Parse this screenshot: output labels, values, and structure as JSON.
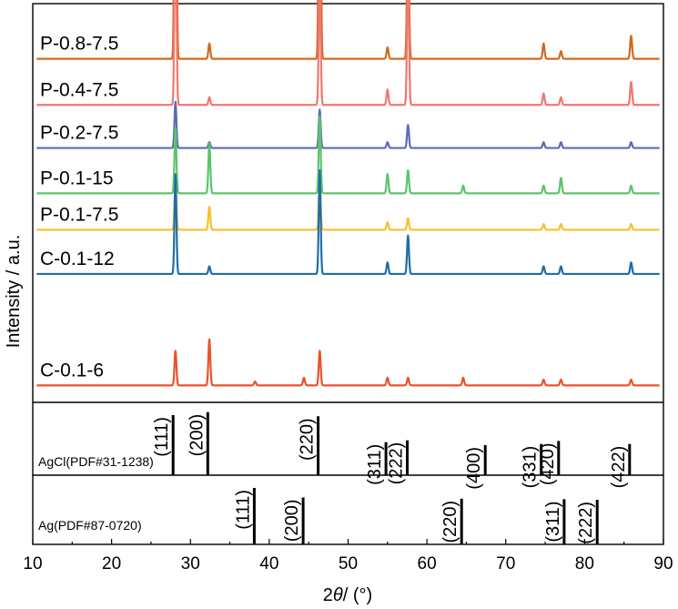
{
  "chart_data": {
    "type": "line",
    "xlabel_num": "2",
    "xlabel_var": "θ",
    "xlabel_unit": "/ (°)",
    "ylabel": "Intensity / a.u.",
    "xlim": [
      10,
      90
    ],
    "xticks": [
      "10",
      "20",
      "30",
      "40",
      "50",
      "60",
      "70",
      "80",
      "90"
    ],
    "series": [
      {
        "name": "P-0.8-7.5",
        "color": "#D2691E",
        "baseline": 0.88,
        "peaks": [
          [
            28.1,
            1.0
          ],
          [
            32.4,
            0.04
          ],
          [
            46.4,
            0.81
          ],
          [
            55.0,
            0.03
          ],
          [
            57.6,
            0.38
          ],
          [
            74.8,
            0.04
          ],
          [
            77.0,
            0.02
          ],
          [
            85.9,
            0.06
          ]
        ]
      },
      {
        "name": "P-0.4-7.5",
        "color": "#F07870",
        "baseline": 0.76,
        "peaks": [
          [
            28.1,
            0.56
          ],
          [
            32.4,
            0.02
          ],
          [
            46.4,
            0.33
          ],
          [
            55.0,
            0.04
          ],
          [
            57.6,
            0.36
          ],
          [
            74.8,
            0.03
          ],
          [
            77.0,
            0.02
          ],
          [
            85.9,
            0.06
          ]
        ]
      },
      {
        "name": "P-0.2-7.5",
        "color": "#5B6BB5",
        "baseline": 0.648,
        "peaks": [
          [
            28.1,
            0.12
          ],
          [
            32.4,
            0.015
          ],
          [
            46.4,
            0.1
          ],
          [
            55.0,
            0.015
          ],
          [
            57.6,
            0.06
          ],
          [
            74.8,
            0.015
          ],
          [
            77.0,
            0.015
          ],
          [
            85.9,
            0.015
          ]
        ]
      },
      {
        "name": "P-0.1-15",
        "color": "#5CC46A",
        "baseline": 0.53,
        "peaks": [
          [
            28.1,
            0.17
          ],
          [
            32.4,
            0.13
          ],
          [
            46.4,
            0.2
          ],
          [
            55.0,
            0.05
          ],
          [
            57.6,
            0.06
          ],
          [
            64.6,
            0.02
          ],
          [
            74.8,
            0.02
          ],
          [
            77.0,
            0.04
          ],
          [
            85.9,
            0.02
          ]
        ]
      },
      {
        "name": "P-0.1-7.5",
        "color": "#F5C130",
        "baseline": 0.435,
        "peaks": [
          [
            28.1,
            0.12
          ],
          [
            32.4,
            0.06
          ],
          [
            46.4,
            0.12
          ],
          [
            55.0,
            0.02
          ],
          [
            57.6,
            0.03
          ],
          [
            74.8,
            0.015
          ],
          [
            77.0,
            0.015
          ],
          [
            85.9,
            0.015
          ]
        ]
      },
      {
        "name": "C-0.1-12",
        "color": "#1F6EA8",
        "baseline": 0.32,
        "peaks": [
          [
            28.1,
            0.26
          ],
          [
            32.4,
            0.02
          ],
          [
            46.4,
            0.27
          ],
          [
            55.0,
            0.03
          ],
          [
            57.6,
            0.1
          ],
          [
            74.8,
            0.02
          ],
          [
            77.0,
            0.02
          ],
          [
            85.9,
            0.03
          ]
        ]
      },
      {
        "name": "C-0.1-6",
        "color": "#E8532A",
        "baseline": 0.03,
        "peaks": [
          [
            28.1,
            0.09
          ],
          [
            32.4,
            0.12
          ],
          [
            38.2,
            0.01
          ],
          [
            44.4,
            0.02
          ],
          [
            46.4,
            0.09
          ],
          [
            55.0,
            0.02
          ],
          [
            57.6,
            0.02
          ],
          [
            64.6,
            0.02
          ],
          [
            74.8,
            0.015
          ],
          [
            77.0,
            0.015
          ],
          [
            85.9,
            0.015
          ]
        ]
      }
    ],
    "references": [
      {
        "name": "AgCl(PDF#31-1238)",
        "lines": [
          {
            "x": 27.8,
            "rel": 1.0,
            "hkl": "(111)"
          },
          {
            "x": 32.2,
            "rel": 1.05,
            "hkl": "(200)"
          },
          {
            "x": 46.2,
            "rel": 0.98,
            "hkl": "(220)"
          },
          {
            "x": 54.8,
            "rel": 0.55,
            "hkl": "(311)"
          },
          {
            "x": 57.5,
            "rel": 0.58,
            "hkl": "(222)"
          },
          {
            "x": 67.4,
            "rel": 0.5,
            "hkl": "(400)"
          },
          {
            "x": 74.5,
            "rel": 0.52,
            "hkl": "(331)"
          },
          {
            "x": 76.7,
            "rel": 0.57,
            "hkl": "(420)"
          },
          {
            "x": 85.7,
            "rel": 0.52,
            "hkl": "(422)"
          }
        ]
      },
      {
        "name": "Ag(PDF#87-0720)",
        "lines": [
          {
            "x": 38.1,
            "rel": 1.0,
            "hkl": "(111)"
          },
          {
            "x": 44.3,
            "rel": 0.83,
            "hkl": "(200)"
          },
          {
            "x": 64.4,
            "rel": 0.81,
            "hkl": "(220)"
          },
          {
            "x": 77.4,
            "rel": 0.8,
            "hkl": "(311)"
          },
          {
            "x": 81.6,
            "rel": 0.79,
            "hkl": "(222)"
          }
        ]
      }
    ],
    "grid": false
  }
}
